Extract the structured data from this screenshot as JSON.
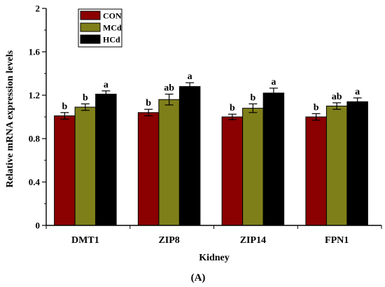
{
  "chart_data": {
    "type": "bar",
    "title": "",
    "panel_label": "(A)",
    "xlabel": "Kidney",
    "ylabel": "Relative mRNA expression levels",
    "ylim": [
      0,
      2
    ],
    "yticks": [
      "0",
      "0.4",
      "0.8",
      "1.2",
      "1.6",
      "2"
    ],
    "grid": false,
    "legend_position": "top-left",
    "categories": [
      "DMT1",
      "ZIP8",
      "ZIP14",
      "FPN1"
    ],
    "series": [
      {
        "name": "CON",
        "color": "#8b0000",
        "values": [
          1.01,
          1.04,
          1.0,
          1.0
        ],
        "errors": [
          0.03,
          0.03,
          0.025,
          0.03
        ],
        "labels": [
          "b",
          "b",
          "b",
          "b"
        ]
      },
      {
        "name": "MCd",
        "color": "#7f7f1a",
        "values": [
          1.09,
          1.16,
          1.08,
          1.1
        ],
        "errors": [
          0.03,
          0.05,
          0.04,
          0.03
        ],
        "labels": [
          "b",
          "ab",
          "b",
          "ab"
        ]
      },
      {
        "name": "HCd",
        "color": "#000000",
        "values": [
          1.21,
          1.28,
          1.22,
          1.14
        ],
        "errors": [
          0.03,
          0.035,
          0.045,
          0.035
        ],
        "labels": [
          "a",
          "a",
          "a",
          "a"
        ]
      }
    ]
  }
}
